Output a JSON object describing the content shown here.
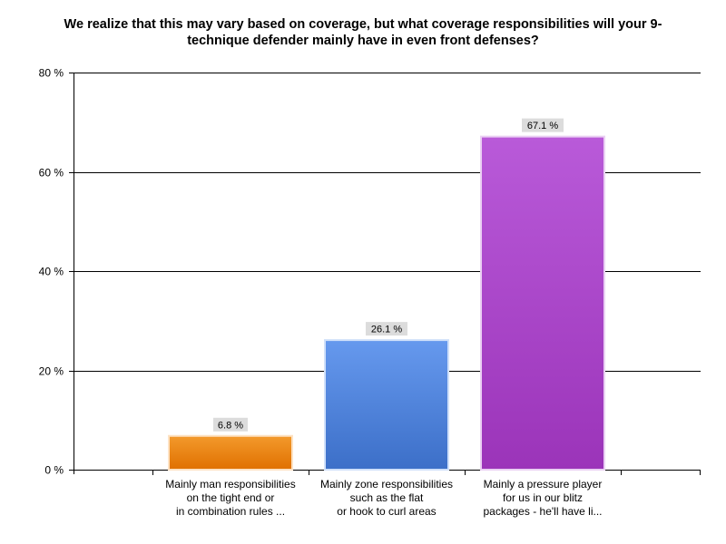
{
  "chart_data": {
    "type": "bar",
    "title": "We realize that this may vary based on coverage, but what coverage responsibilities will your 9-technique defender mainly have in even front defenses?",
    "title_lines": [
      "We realize that this may vary based on coverage, but what coverage responsibilities will your 9-",
      "technique defender mainly have in even front defenses?"
    ],
    "categories": [
      [
        "Mainly man responsibilities",
        "on the tight end or",
        "in combination rules ..."
      ],
      [
        "Mainly zone responsibilities",
        "such as the flat",
        "or hook to curl areas"
      ],
      [
        "Mainly a pressure player",
        "for us in our blitz",
        "packages - he'll have li..."
      ]
    ],
    "values": [
      6.8,
      26.1,
      67.1
    ],
    "data_labels": [
      "6.8 %",
      "26.1 %",
      "67.1 %"
    ],
    "ylim": [
      0,
      80
    ],
    "yticks": [
      0,
      20,
      40,
      60,
      80
    ],
    "ytick_labels": [
      "0 %",
      "20 %",
      "40 %",
      "60 %",
      "80 %"
    ],
    "xlabel": "",
    "ylabel": "",
    "grid": true,
    "colors": [
      {
        "top": "#f39a2c",
        "bottom": "#e07000",
        "edge": "#fde2c3"
      },
      {
        "top": "#6699ee",
        "bottom": "#3c6fc8",
        "edge": "#cfe0fa"
      },
      {
        "top": "#b95ad9",
        "bottom": "#9b34b9",
        "edge": "#ead0f3"
      }
    ]
  }
}
